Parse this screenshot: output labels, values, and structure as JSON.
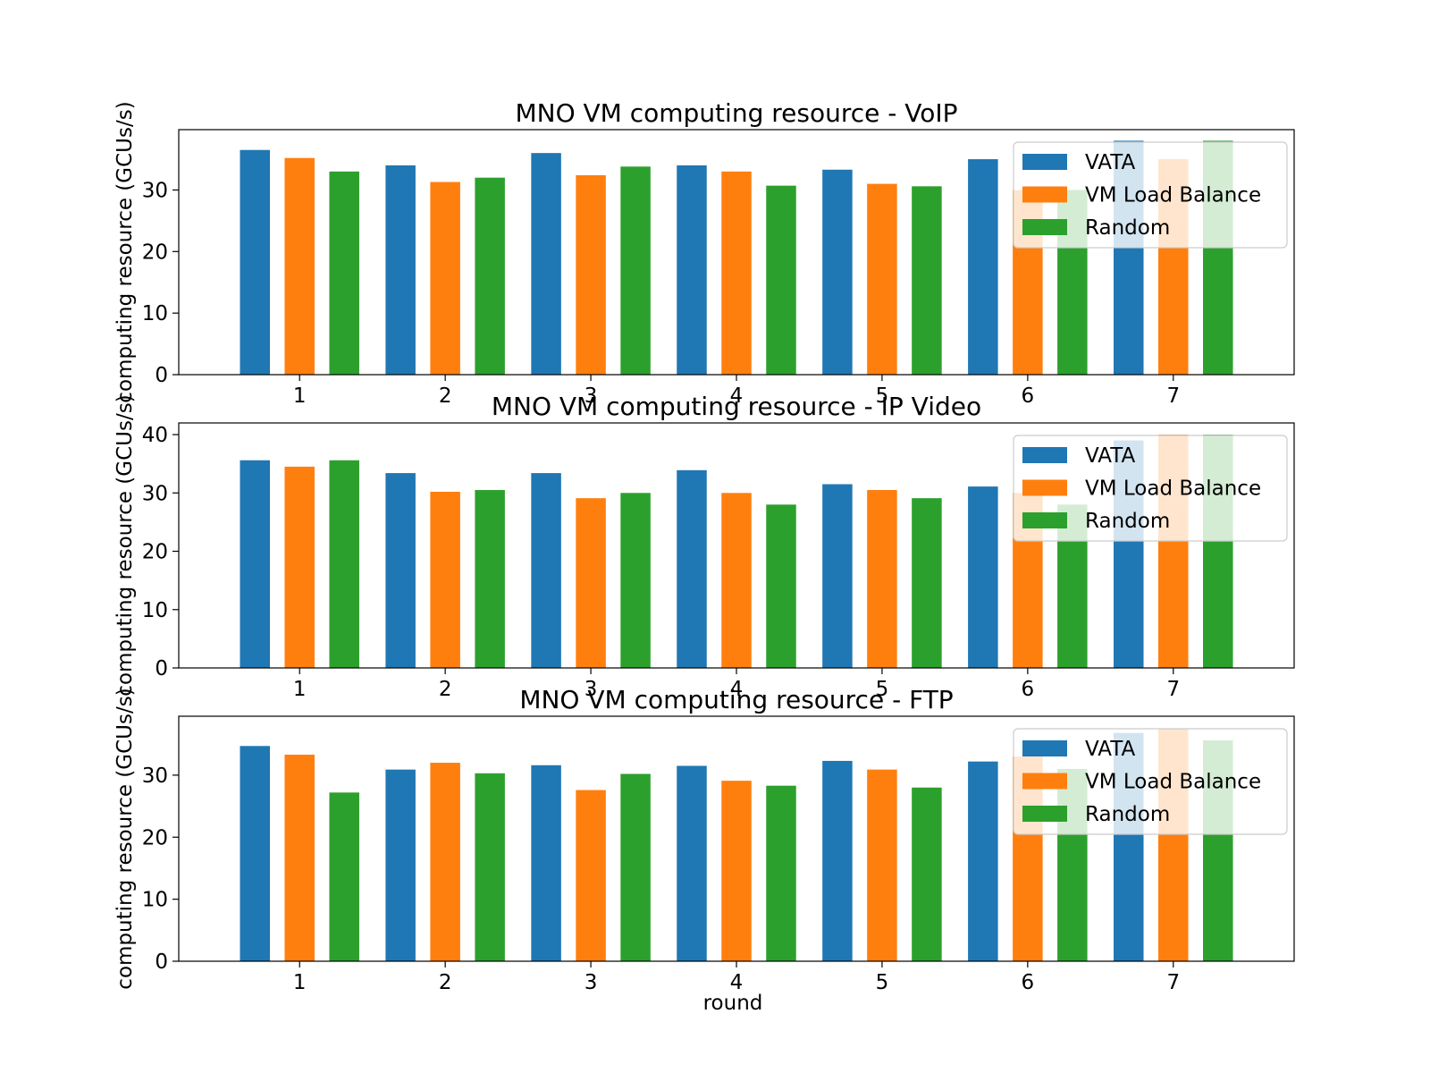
{
  "figure": {
    "xlabel": "round"
  },
  "legend": {
    "items": [
      {
        "label": "VATA",
        "color": "#1f77b4"
      },
      {
        "label": "VM Load Balance",
        "color": "#ff7f0e"
      },
      {
        "label": "Random",
        "color": "#2ca02c"
      }
    ],
    "placement": "top-right"
  },
  "chart_data": [
    {
      "type": "bar",
      "title": "MNO VM computing resource - VoIP",
      "xlabel": "",
      "ylabel": "computing resource (GCUs/s)",
      "categories": [
        "1",
        "2",
        "3",
        "4",
        "5",
        "6",
        "7"
      ],
      "ylim": [
        0,
        39.8
      ],
      "yticks": [
        0,
        10,
        20,
        30
      ],
      "series": [
        {
          "name": "VATA",
          "values": [
            36.5,
            34.0,
            36.0,
            34.0,
            33.3,
            35.0,
            38.0
          ]
        },
        {
          "name": "VM Load Balance",
          "values": [
            35.2,
            31.3,
            32.4,
            33.0,
            31.0,
            30.0,
            35.0
          ]
        },
        {
          "name": "Random",
          "values": [
            33.0,
            32.0,
            33.8,
            30.7,
            30.6,
            30.0,
            38.0
          ]
        }
      ]
    },
    {
      "type": "bar",
      "title": "MNO VM computing resource - IP Video",
      "xlabel": "",
      "ylabel": "computing resource (GCUs/s)",
      "categories": [
        "1",
        "2",
        "3",
        "4",
        "5",
        "6",
        "7"
      ],
      "ylim": [
        0,
        42
      ],
      "yticks": [
        0,
        10,
        20,
        30,
        40
      ],
      "series": [
        {
          "name": "VATA",
          "values": [
            35.6,
            33.4,
            33.4,
            33.9,
            31.5,
            31.1,
            39.0
          ]
        },
        {
          "name": "VM Load Balance",
          "values": [
            34.5,
            30.2,
            29.1,
            30.0,
            30.5,
            30.0,
            40.0
          ]
        },
        {
          "name": "Random",
          "values": [
            35.6,
            30.5,
            30.0,
            28.0,
            29.1,
            28.0,
            40.0
          ]
        }
      ]
    },
    {
      "type": "bar",
      "title": "MNO VM computing resource - FTP",
      "xlabel": "round",
      "ylabel": "computing resource (GCUs/s)",
      "categories": [
        "1",
        "2",
        "3",
        "4",
        "5",
        "6",
        "7"
      ],
      "ylim": [
        0,
        39.5
      ],
      "yticks": [
        0,
        10,
        20,
        30
      ],
      "series": [
        {
          "name": "VATA",
          "values": [
            34.7,
            30.9,
            31.6,
            31.5,
            32.3,
            32.2,
            36.8
          ]
        },
        {
          "name": "VM Load Balance",
          "values": [
            33.3,
            32.0,
            27.6,
            29.1,
            30.9,
            33.0,
            37.5
          ]
        },
        {
          "name": "Random",
          "values": [
            27.2,
            30.3,
            30.2,
            28.3,
            28.0,
            31.0,
            35.6
          ]
        }
      ]
    }
  ]
}
